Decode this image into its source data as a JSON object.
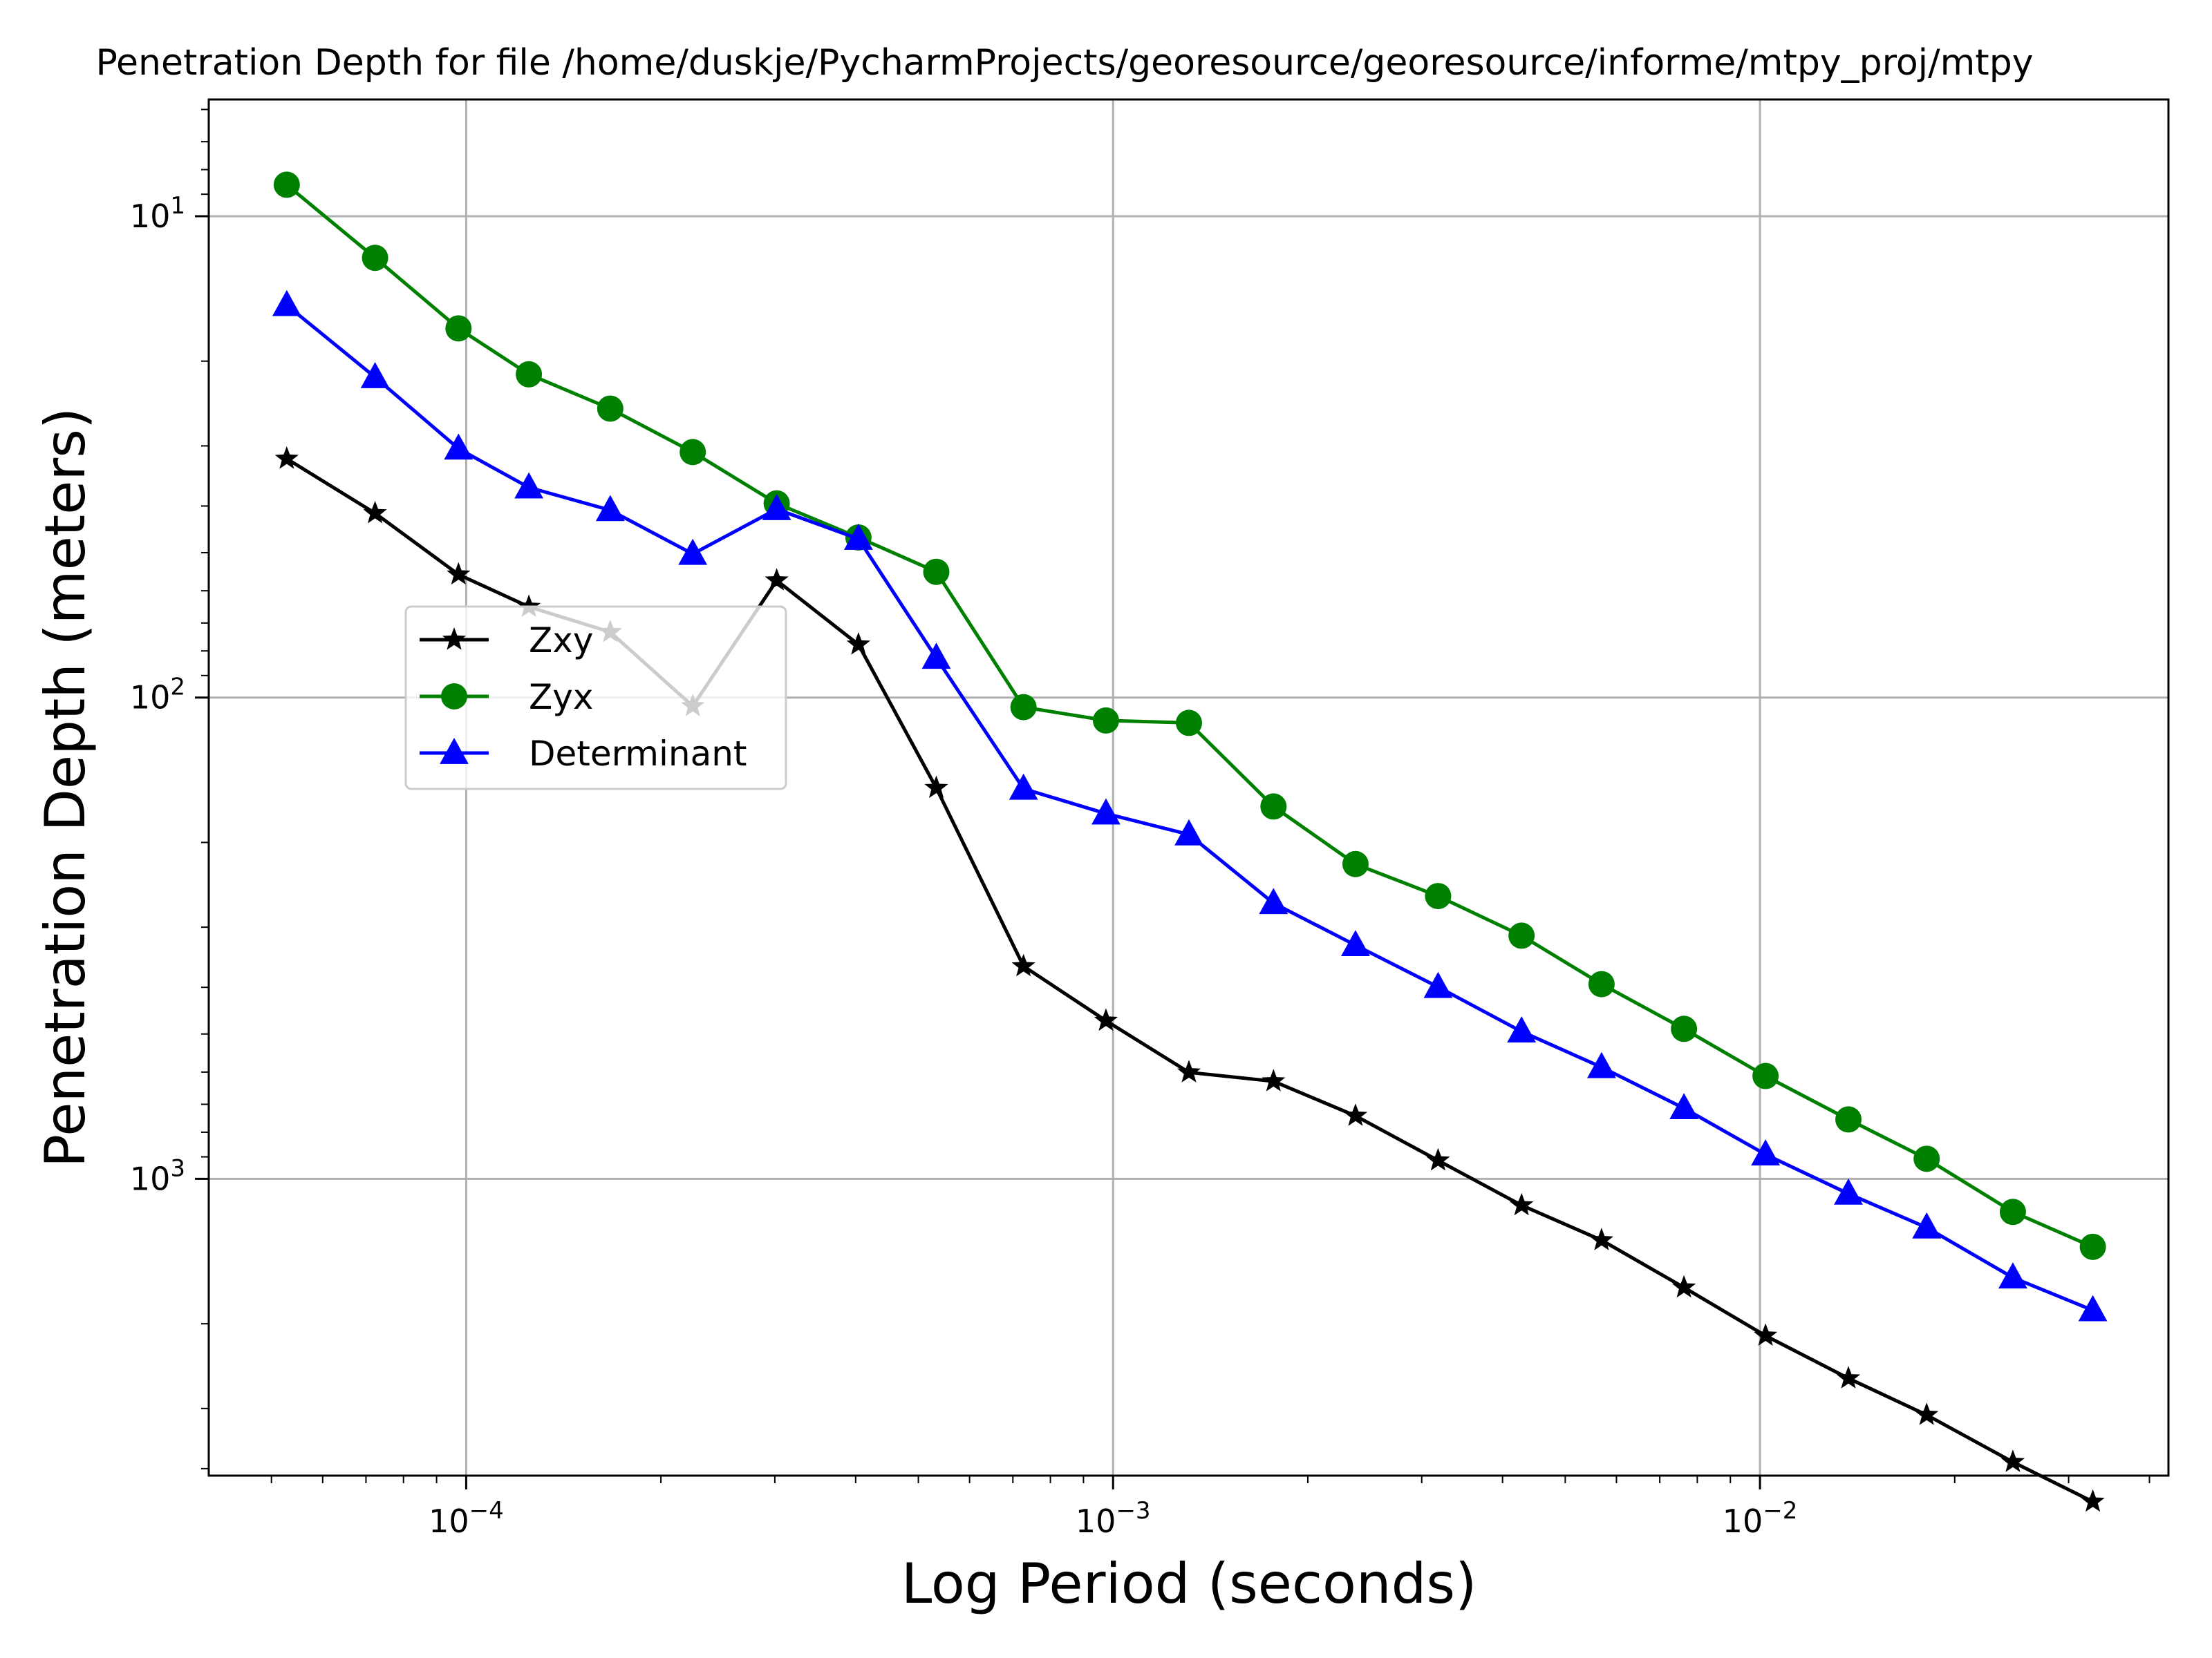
{
  "chart_data": {
    "type": "line",
    "title": "Penetration Depth for file /home/duskje/PycharmProjects/georesource/georesource/informe/mtpy_proj/mtpy",
    "xlabel": "Log Period (seconds)",
    "ylabel": "Penetration Depth (meters)",
    "xscale": "log",
    "yscale": "log",
    "y_inverted": true,
    "xlim": [
      4e-05,
      0.0428
    ],
    "ylim": [
      5.72,
      4136
    ],
    "grid": true,
    "legend_position": "center-left",
    "x_tick_labels": [
      "10^-4",
      "10^-3",
      "10^-2"
    ],
    "y_tick_labels": [
      "10^1",
      "10^2",
      "10^3"
    ],
    "x": [
      5.28e-05,
      7.23e-05,
      9.73e-05,
      0.000125,
      0.000167,
      0.000224,
      0.000302,
      0.000404,
      0.000533,
      0.000727,
      0.000975,
      0.00131,
      0.00177,
      0.00237,
      0.00318,
      0.00428,
      0.00569,
      0.00763,
      0.0102,
      0.0137,
      0.0181,
      0.0246,
      0.0327
    ],
    "series": [
      {
        "name": "Zxy",
        "color": "#000000",
        "marker": "star",
        "values": [
          31.9,
          41.4,
          55.5,
          64.8,
          73.1,
          104.2,
          57.1,
          77.6,
          154.1,
          361.6,
          469.3,
          600.9,
          627.0,
          739.6,
          915.8,
          1134.8,
          1341.1,
          1681.6,
          2117.7,
          2597.1,
          3093.8,
          3875.0,
          4685.0
        ]
      },
      {
        "name": "Zyx",
        "color": "#008000",
        "marker": "circle",
        "values": [
          8.6,
          12.2,
          17.1,
          21.3,
          25.1,
          30.9,
          39.5,
          46.5,
          54.8,
          104.7,
          111.6,
          112.9,
          168.4,
          221.8,
          258.5,
          312.4,
          394.0,
          487.9,
          611.4,
          752.5,
          908.4,
          1171.4,
          1384.5
        ]
      },
      {
        "name": "Determinant",
        "color": "#0000ff",
        "marker": "triangle",
        "values": [
          15.3,
          21.6,
          30.4,
          36.6,
          40.8,
          50.3,
          40.6,
          46.8,
          82.7,
          154.7,
          174.2,
          192.5,
          267.4,
          327.0,
          399.4,
          494.2,
          586.1,
          713.3,
          889.9,
          1073.6,
          1262.2,
          1603.5,
          1875.3
        ]
      }
    ]
  }
}
